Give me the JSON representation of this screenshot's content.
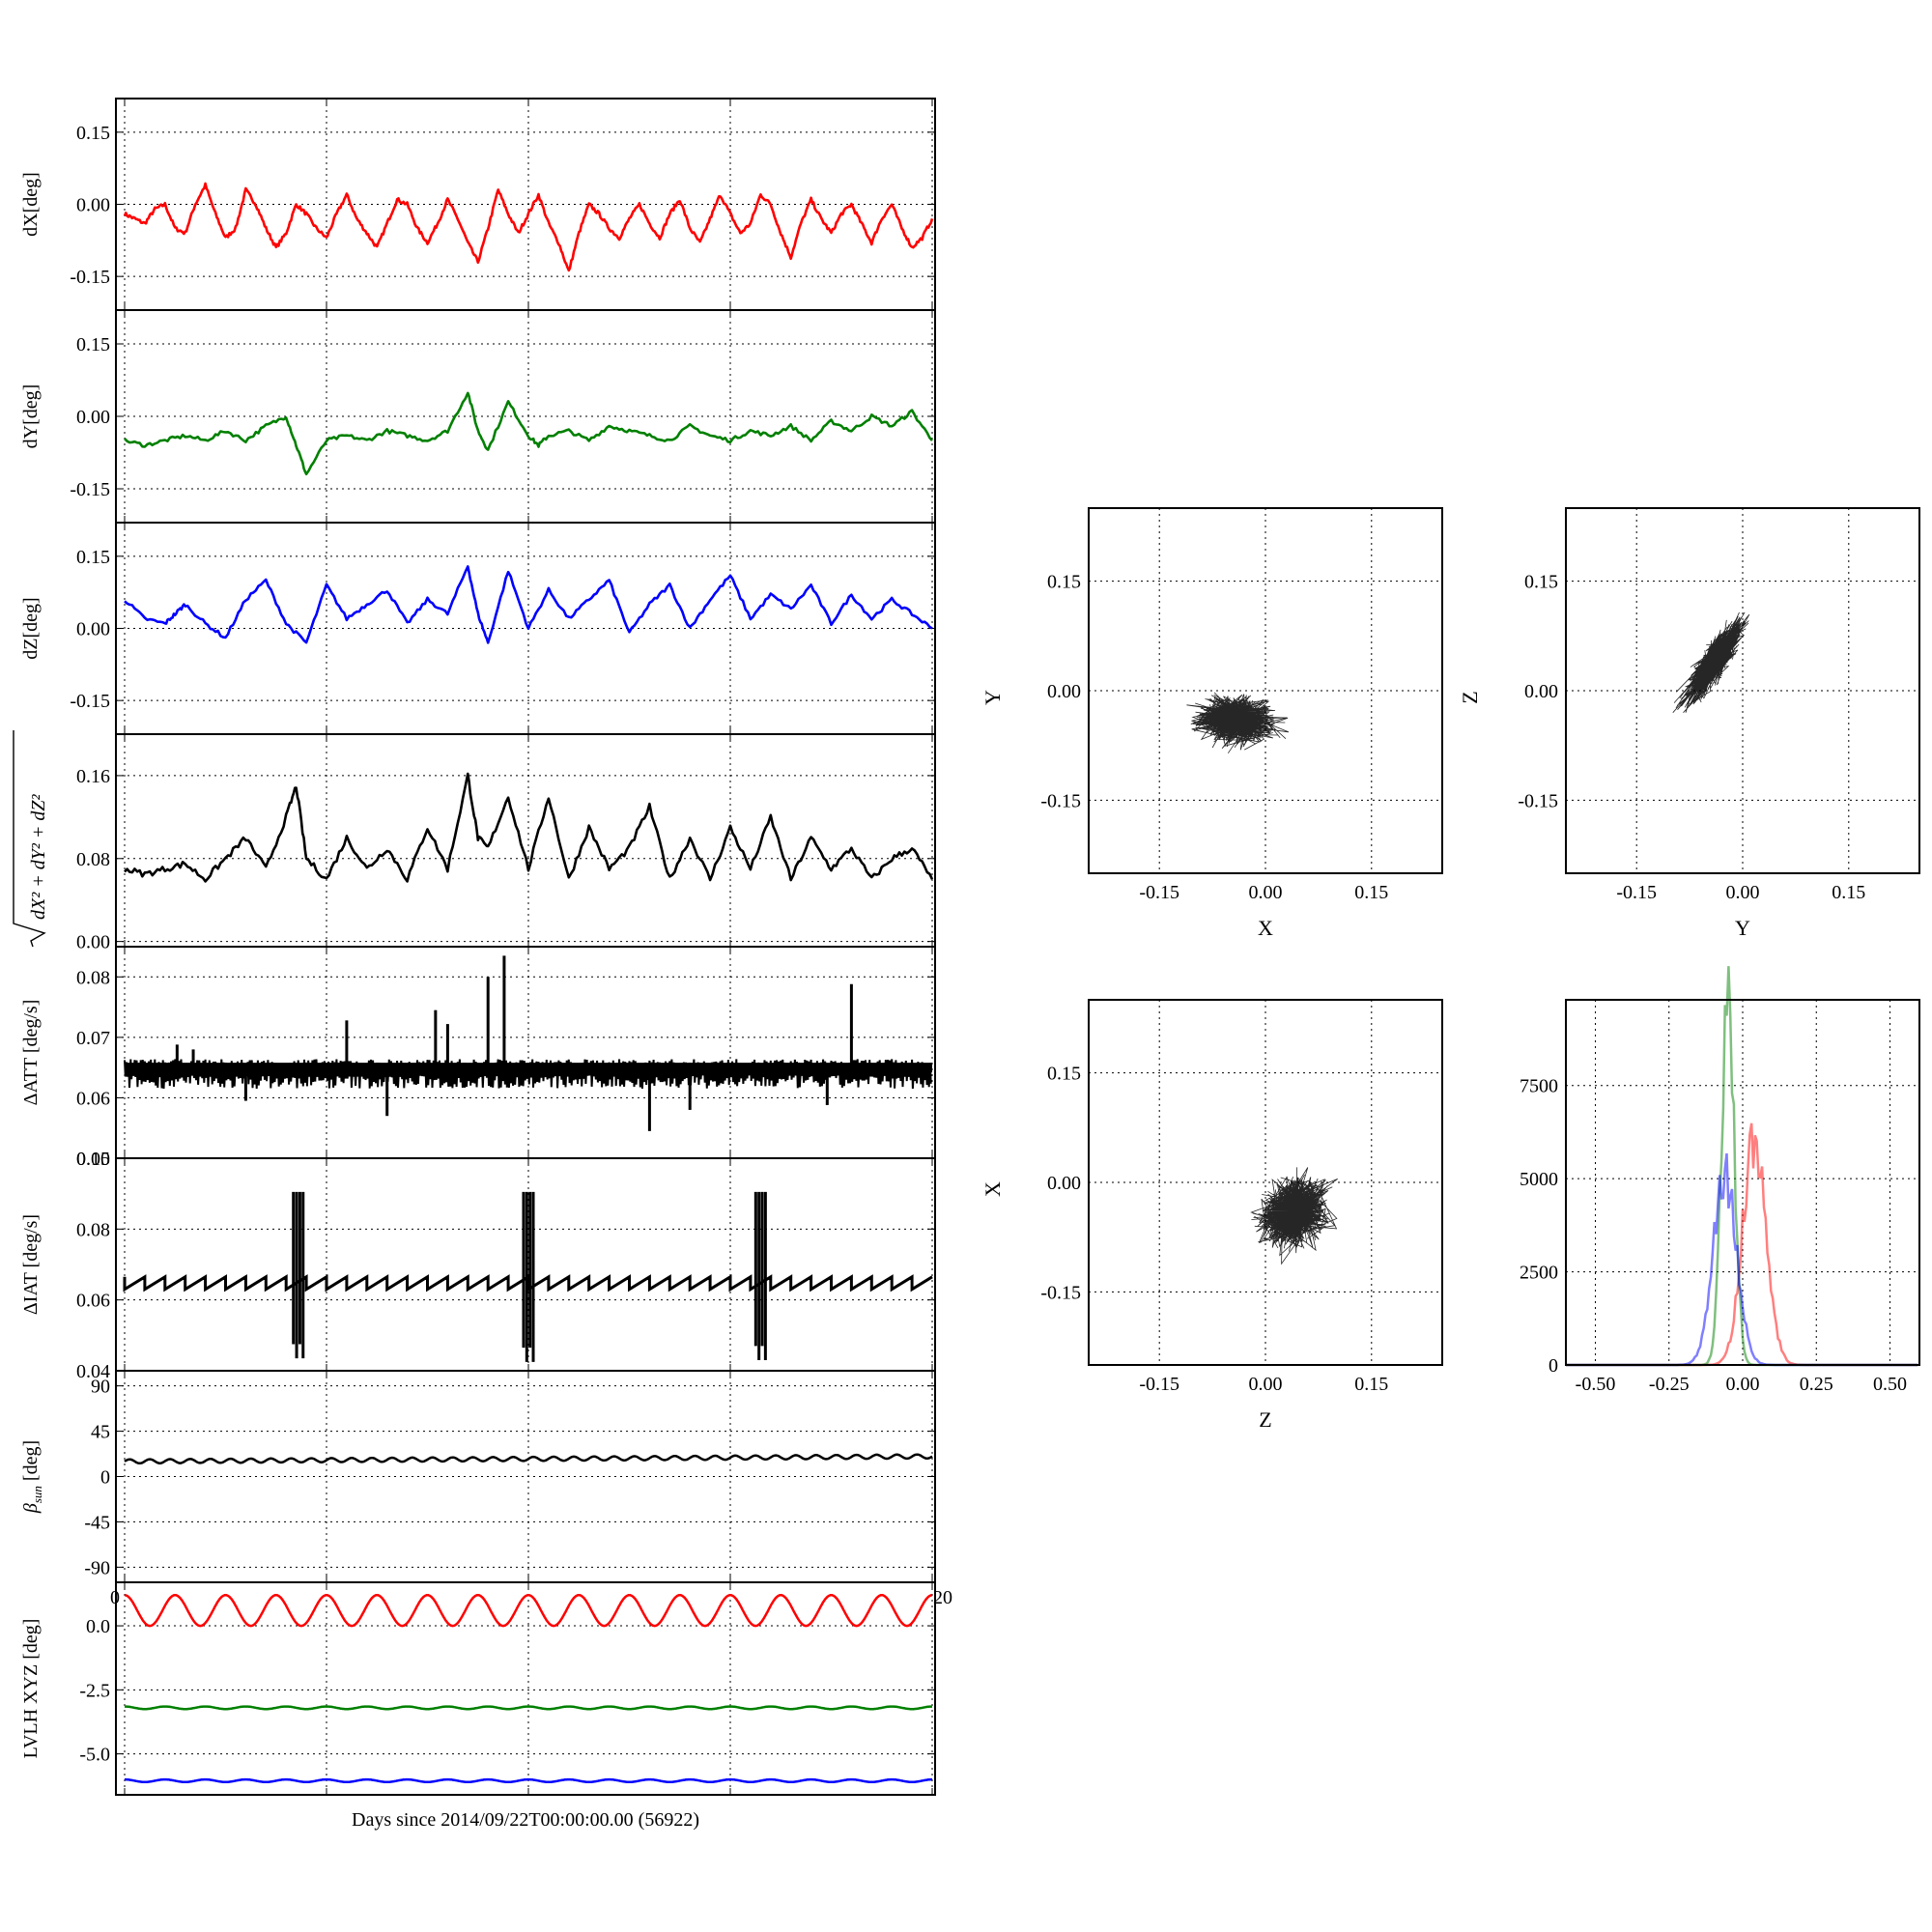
{
  "figure": {
    "xlabel": "Days since 2014/09/22T00:00:00.00 (56922)"
  },
  "chart_data": [
    {
      "id": "dx",
      "type": "line",
      "ylabel": "dX[deg]",
      "ylim": [
        -0.22,
        0.22
      ],
      "yticks": [
        {
          "v": 0.15,
          "label": "0.15"
        },
        {
          "v": 0.0,
          "label": "0.00"
        },
        {
          "v": -0.15,
          "label": "-0.15"
        }
      ],
      "series": [
        {
          "color": "#ff0000",
          "x": [
            0,
            0.25,
            0.5,
            0.75,
            1,
            1.25,
            1.5,
            1.75,
            2,
            2.25,
            2.5,
            2.75,
            3,
            3.25,
            3.5,
            3.75,
            4,
            4.25,
            4.5,
            4.75,
            5,
            5.25,
            5.5,
            5.75,
            6,
            6.25,
            6.5,
            6.75,
            7,
            7.25,
            7.5,
            7.75,
            8,
            8.25,
            8.5,
            8.75,
            9,
            9.25,
            9.5,
            9.75,
            10,
            10.25,
            10.5,
            10.75,
            11,
            11.25,
            11.5,
            11.75,
            12,
            12.25,
            12.5,
            12.75,
            13,
            13.25,
            13.5,
            13.75,
            14,
            14.25,
            14.5,
            14.75,
            15,
            15.25,
            15.5,
            15.75,
            16,
            16.25,
            16.5,
            16.75,
            17,
            17.25,
            17.5,
            17.75,
            18,
            18.25,
            18.5,
            18.75,
            19,
            19.25,
            19.5,
            19.75,
            20
          ],
          "y": [
            -0.02,
            -0.03,
            -0.04,
            -0.01,
            0.0,
            -0.05,
            -0.06,
            0.0,
            0.04,
            -0.02,
            -0.07,
            -0.05,
            0.03,
            0.0,
            -0.05,
            -0.09,
            -0.06,
            0.0,
            -0.02,
            -0.05,
            -0.07,
            -0.02,
            0.02,
            -0.03,
            -0.06,
            -0.09,
            -0.04,
            0.01,
            0.0,
            -0.05,
            -0.08,
            -0.04,
            0.01,
            -0.03,
            -0.08,
            -0.12,
            -0.05,
            0.03,
            -0.02,
            -0.06,
            -0.02,
            0.02,
            -0.04,
            -0.08,
            -0.14,
            -0.06,
            0.0,
            -0.02,
            -0.05,
            -0.07,
            -0.03,
            0.0,
            -0.04,
            -0.07,
            -0.02,
            0.01,
            -0.05,
            -0.08,
            -0.03,
            0.02,
            -0.02,
            -0.06,
            -0.04,
            0.02,
            0.0,
            -0.06,
            -0.11,
            -0.04,
            0.01,
            -0.03,
            -0.06,
            -0.02,
            0.0,
            -0.04,
            -0.08,
            -0.03,
            0.0,
            -0.05,
            -0.09,
            -0.07,
            -0.03
          ]
        }
      ]
    },
    {
      "id": "dy",
      "type": "line",
      "ylabel": "dY[deg]",
      "ylim": [
        -0.22,
        0.22
      ],
      "yticks": [
        {
          "v": 0.15,
          "label": "0.15"
        },
        {
          "v": 0.0,
          "label": "0.00"
        },
        {
          "v": -0.15,
          "label": "-0.15"
        }
      ],
      "series": [
        {
          "color": "#008000",
          "x": [
            0,
            0.5,
            1,
            1.5,
            2,
            2.5,
            3,
            3.5,
            4,
            4.25,
            4.5,
            5,
            5.5,
            6,
            6.5,
            7,
            7.5,
            8,
            8.5,
            8.75,
            9,
            9.5,
            10,
            10.25,
            10.5,
            11,
            11.5,
            12,
            12.5,
            13,
            13.5,
            14,
            14.5,
            15,
            15.5,
            16,
            16.5,
            17,
            17.5,
            18,
            18.5,
            19,
            19.5,
            20
          ],
          "y": [
            -0.05,
            -0.06,
            -0.05,
            -0.04,
            -0.05,
            -0.03,
            -0.05,
            -0.02,
            0.0,
            -0.06,
            -0.12,
            -0.05,
            -0.04,
            -0.05,
            -0.03,
            -0.04,
            -0.05,
            -0.03,
            0.05,
            -0.03,
            -0.07,
            0.03,
            -0.04,
            -0.06,
            -0.04,
            -0.03,
            -0.05,
            -0.02,
            -0.03,
            -0.04,
            -0.05,
            -0.02,
            -0.04,
            -0.05,
            -0.03,
            -0.04,
            -0.02,
            -0.05,
            -0.01,
            -0.03,
            0.0,
            -0.02,
            0.01,
            -0.05
          ]
        }
      ]
    },
    {
      "id": "dz",
      "type": "line",
      "ylabel": "dZ[deg]",
      "ylim": [
        -0.22,
        0.22
      ],
      "yticks": [
        {
          "v": 0.15,
          "label": "0.15"
        },
        {
          "v": 0.0,
          "label": "0.00"
        },
        {
          "v": -0.15,
          "label": "-0.15"
        }
      ],
      "series": [
        {
          "color": "#0000ff",
          "x": [
            0,
            0.5,
            1,
            1.25,
            1.5,
            2,
            2.5,
            3,
            3.5,
            4,
            4.5,
            5,
            5.5,
            6,
            6.5,
            7,
            7.5,
            8,
            8.5,
            8.75,
            9,
            9.5,
            10,
            10.5,
            11,
            11.5,
            12,
            12.5,
            13,
            13.5,
            14,
            14.5,
            15,
            15.5,
            16,
            16.5,
            17,
            17.5,
            18,
            18.5,
            19,
            19.5,
            20
          ],
          "y": [
            0.06,
            0.02,
            0.01,
            0.03,
            0.05,
            0.01,
            -0.02,
            0.06,
            0.1,
            0.01,
            -0.03,
            0.09,
            0.02,
            0.05,
            0.08,
            0.01,
            0.06,
            0.03,
            0.13,
            0.03,
            -0.03,
            0.12,
            0.0,
            0.08,
            0.02,
            0.06,
            0.1,
            -0.01,
            0.05,
            0.09,
            0.0,
            0.06,
            0.11,
            0.02,
            0.07,
            0.04,
            0.09,
            0.01,
            0.07,
            0.02,
            0.06,
            0.03,
            0.0
          ]
        }
      ]
    },
    {
      "id": "mag",
      "type": "line",
      "ylabel": "√dX²+dY²+dZ²",
      "ylabel_tex": true,
      "ylim": [
        -0.005,
        0.2
      ],
      "yticks": [
        {
          "v": 0.16,
          "label": "0.16"
        },
        {
          "v": 0.08,
          "label": "0.08"
        },
        {
          "v": 0.0,
          "label": "0.00"
        }
      ],
      "series": [
        {
          "color": "#000000",
          "x": [
            0,
            0.5,
            1,
            1.5,
            2,
            2.5,
            3,
            3.5,
            4,
            4.25,
            4.5,
            5,
            5.5,
            6,
            6.5,
            7,
            7.5,
            8,
            8.5,
            8.75,
            9,
            9.5,
            10,
            10.5,
            11,
            11.5,
            12,
            12.5,
            13,
            13.5,
            14,
            14.5,
            15,
            15.5,
            16,
            16.5,
            17,
            17.5,
            18,
            18.5,
            19,
            19.5,
            20
          ],
          "y": [
            0.07,
            0.065,
            0.07,
            0.075,
            0.06,
            0.08,
            0.1,
            0.07,
            0.12,
            0.15,
            0.08,
            0.06,
            0.1,
            0.07,
            0.09,
            0.06,
            0.11,
            0.07,
            0.16,
            0.1,
            0.09,
            0.14,
            0.07,
            0.14,
            0.06,
            0.11,
            0.07,
            0.09,
            0.13,
            0.06,
            0.1,
            0.06,
            0.11,
            0.07,
            0.12,
            0.06,
            0.1,
            0.07,
            0.09,
            0.06,
            0.08,
            0.09,
            0.06
          ]
        }
      ]
    },
    {
      "id": "datt",
      "type": "line",
      "ylabel": "ΔATT [deg/s]",
      "ylim": [
        0.05,
        0.085
      ],
      "yticks": [
        {
          "v": 0.08,
          "label": "0.08"
        },
        {
          "v": 0.07,
          "label": "0.07"
        },
        {
          "v": 0.06,
          "label": "0.06"
        },
        {
          "v": 0.05,
          "label": "0.05"
        }
      ],
      "series": [
        {
          "color": "#000000",
          "band": [
            0.0615,
            0.066
          ],
          "base": 0.0648,
          "spikes": [
            {
              "x": 1.3,
              "y": 0.0688
            },
            {
              "x": 1.7,
              "y": 0.068
            },
            {
              "x": 3.0,
              "y": 0.0595
            },
            {
              "x": 5.5,
              "y": 0.0728
            },
            {
              "x": 6.5,
              "y": 0.057
            },
            {
              "x": 7.7,
              "y": 0.0745
            },
            {
              "x": 8.0,
              "y": 0.0722
            },
            {
              "x": 9.0,
              "y": 0.08
            },
            {
              "x": 9.4,
              "y": 0.0835
            },
            {
              "x": 13.0,
              "y": 0.0545
            },
            {
              "x": 14.0,
              "y": 0.058
            },
            {
              "x": 17.4,
              "y": 0.0588
            },
            {
              "x": 18.0,
              "y": 0.0788
            }
          ]
        }
      ]
    },
    {
      "id": "diat",
      "type": "line",
      "ylabel": "ΔIAT [deg/s]",
      "ylim": [
        0.04,
        0.1
      ],
      "yticks": [
        {
          "v": 0.1,
          "label": "0.10"
        },
        {
          "v": 0.08,
          "label": "0.08"
        },
        {
          "v": 0.06,
          "label": "0.06"
        },
        {
          "v": 0.04,
          "label": "0.04"
        }
      ],
      "series": [
        {
          "color": "#000000",
          "sawtooth": {
            "period": 0.5,
            "low": 0.063,
            "high": 0.0665
          },
          "bursts": [
            {
              "x": 4.3,
              "low": 0.0435,
              "high": 0.0905
            },
            {
              "x": 10.0,
              "low": 0.0425,
              "high": 0.0905
            },
            {
              "x": 15.75,
              "low": 0.043,
              "high": 0.0905
            }
          ]
        }
      ]
    },
    {
      "id": "beta",
      "type": "line",
      "ylabel": "βsun [deg]",
      "ylim": [
        -105,
        105
      ],
      "yticks": [
        {
          "v": 90,
          "label": "90"
        },
        {
          "v": 45,
          "label": "45"
        },
        {
          "v": 0,
          "label": "0"
        },
        {
          "v": -45,
          "label": "-45"
        },
        {
          "v": -90,
          "label": "-90"
        }
      ],
      "xtick_left": "0",
      "xtick_right": "20",
      "series": [
        {
          "color": "#000000",
          "start": 15,
          "end": 20,
          "amplitude": 2,
          "cycles": 40
        }
      ]
    },
    {
      "id": "lvlh",
      "type": "line",
      "ylabel": "LVLH XYZ [deg]",
      "ylim": [
        -6.6,
        1.7
      ],
      "yticks": [
        {
          "v": 0.0,
          "label": "0.0"
        },
        {
          "v": -2.5,
          "label": "-2.5"
        },
        {
          "v": -5.0,
          "label": "-5.0"
        }
      ],
      "series": [
        {
          "color": "#ff0000",
          "center": 0.6,
          "amplitude": 0.6,
          "cycles": 16
        },
        {
          "color": "#008000",
          "center": -3.2,
          "amplitude": 0.05,
          "cycles": 20
        },
        {
          "color": "#0000ff",
          "center": -6.05,
          "amplitude": 0.05,
          "cycles": 20
        }
      ]
    },
    {
      "id": "sc_xy",
      "type": "scatter",
      "xlabel": "X",
      "ylabel": "Y",
      "xlim": [
        -0.25,
        0.25
      ],
      "ylim": [
        -0.25,
        0.25
      ],
      "ticks": [
        {
          "v": -0.15,
          "label": "-0.15"
        },
        {
          "v": 0.0,
          "label": "0.00"
        },
        {
          "v": 0.15,
          "label": "0.15"
        }
      ],
      "cloud": {
        "cx": -0.04,
        "cy": -0.04,
        "sx": 0.035,
        "sy": 0.02,
        "rho": 0.0,
        "xr": [
          -0.15,
          0.05
        ],
        "yr": [
          -0.13,
          0.05
        ]
      }
    },
    {
      "id": "sc_yz",
      "type": "scatter",
      "xlabel": "Y",
      "ylabel": "Z",
      "xlim": [
        -0.25,
        0.25
      ],
      "ylim": [
        -0.25,
        0.25
      ],
      "ticks": [
        {
          "v": -0.15,
          "label": "-0.15"
        },
        {
          "v": 0.0,
          "label": "0.00"
        },
        {
          "v": 0.15,
          "label": "0.15"
        }
      ],
      "cloud": {
        "cx": -0.04,
        "cy": 0.04,
        "sx": 0.025,
        "sy": 0.035,
        "rho": 0.85,
        "xr": [
          -0.13,
          0.06
        ],
        "yr": [
          -0.03,
          0.15
        ]
      }
    },
    {
      "id": "sc_zx",
      "type": "scatter",
      "xlabel": "Z",
      "ylabel": "X",
      "xlim": [
        -0.25,
        0.25
      ],
      "ylim": [
        -0.25,
        0.25
      ],
      "ticks": [
        {
          "v": -0.15,
          "label": "-0.15"
        },
        {
          "v": 0.0,
          "label": "0.00"
        },
        {
          "v": 0.15,
          "label": "0.15"
        }
      ],
      "cloud": {
        "cx": 0.04,
        "cy": -0.04,
        "sx": 0.03,
        "sy": 0.03,
        "rho": 0.2,
        "xr": [
          -0.02,
          0.14
        ],
        "yr": [
          -0.15,
          0.05
        ]
      }
    },
    {
      "id": "hist",
      "type": "histogram",
      "xlim": [
        -0.6,
        0.6
      ],
      "ylim": [
        0,
        9800
      ],
      "xticks": [
        {
          "v": -0.5,
          "label": "-0.50"
        },
        {
          "v": -0.25,
          "label": "-0.25"
        },
        {
          "v": 0.0,
          "label": "0.00"
        },
        {
          "v": 0.25,
          "label": "0.25"
        },
        {
          "v": 0.5,
          "label": "0.50"
        }
      ],
      "yticks": [
        {
          "v": 7500,
          "label": "7500"
        },
        {
          "v": 5000,
          "label": "5000"
        },
        {
          "v": 2500,
          "label": "2500"
        },
        {
          "v": 0,
          "label": "0"
        }
      ],
      "series": [
        {
          "color": "#ff0000",
          "mu": 0.04,
          "sigma": 0.04,
          "peak": 6000
        },
        {
          "color": "#008000",
          "mu": -0.05,
          "sigma": 0.022,
          "peak": 9700
        },
        {
          "color": "#0000ff",
          "mu": -0.06,
          "sigma": 0.04,
          "peak": 5100
        }
      ]
    }
  ]
}
